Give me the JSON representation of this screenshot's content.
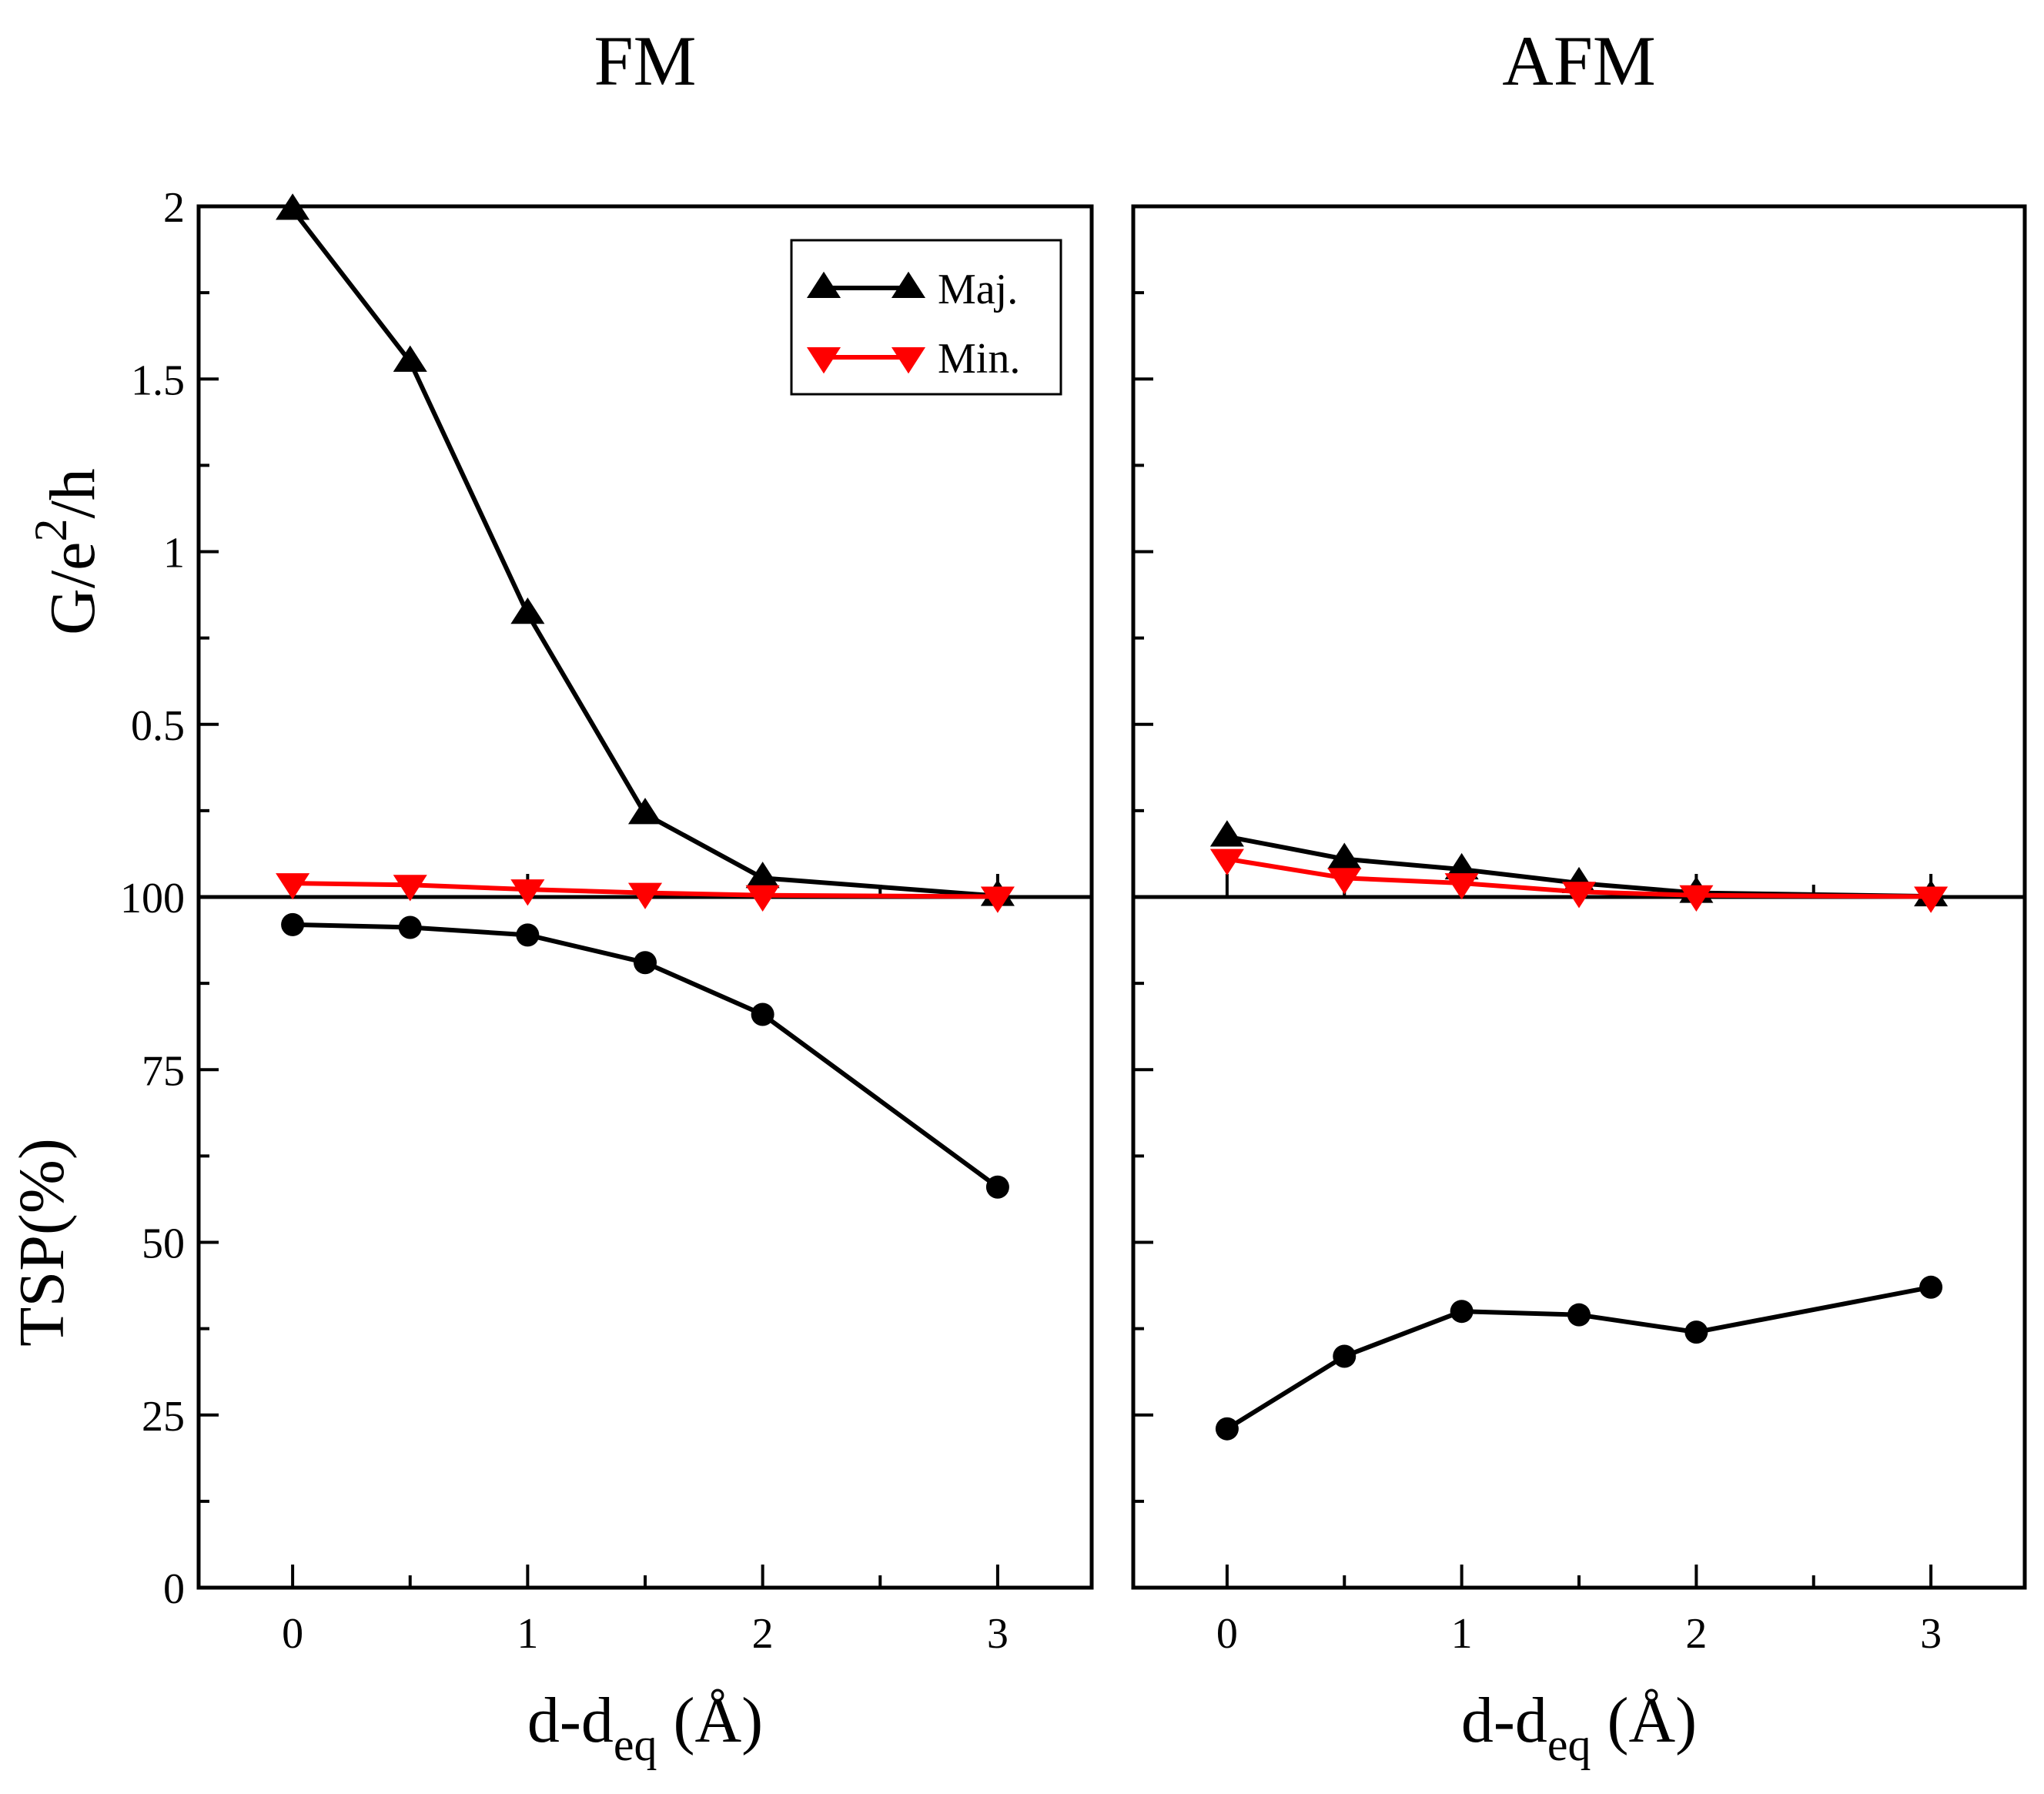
{
  "chart_data": {
    "type": "line",
    "x_ticks": [
      0,
      1,
      2,
      3
    ],
    "xlim": [
      -0.4,
      3.4
    ],
    "xlabel": {
      "main": "d-d",
      "sub": "eq",
      "unit": " (Å)"
    },
    "top_ylabel": {
      "pre": "G/e",
      "sup": "2",
      "post": "/h"
    },
    "top_ylim": [
      0,
      2
    ],
    "top_yticks": [
      {
        "v": 2,
        "label": "2"
      },
      {
        "v": 1.5,
        "label": "1.5"
      },
      {
        "v": 1,
        "label": "1"
      },
      {
        "v": 0.5,
        "label": "0.5"
      }
    ],
    "bottom_ylabel": "TSP(%)",
    "bottom_ylim": [
      0,
      100
    ],
    "bottom_yticks": [
      {
        "v": 100,
        "label": "100"
      },
      {
        "v": 75,
        "label": "75"
      },
      {
        "v": 50,
        "label": "50"
      },
      {
        "v": 25,
        "label": "25"
      },
      {
        "v": 0,
        "label": "0"
      }
    ],
    "legend": [
      {
        "name": "Maj.",
        "color": "#000000",
        "marker": "triangle-up"
      },
      {
        "name": "Min.",
        "color": "#ff0000",
        "marker": "triangle-down"
      }
    ],
    "panels": [
      {
        "title": "FM",
        "conductance": [
          {
            "name": "Maj.",
            "color": "#000000",
            "marker": "triangle-up",
            "x": [
              0,
              0.5,
              1,
              1.5,
              2,
              3
            ],
            "y": [
              1.99,
              1.55,
              0.82,
              0.24,
              0.055,
              0.003
            ]
          },
          {
            "name": "Min.",
            "color": "#ff0000",
            "marker": "triangle-down",
            "x": [
              0,
              0.5,
              1,
              1.5,
              2,
              3
            ],
            "y": [
              0.04,
              0.035,
              0.022,
              0.012,
              0.005,
              0.001
            ]
          }
        ],
        "tsp": {
          "name": "TSP",
          "color": "#000000",
          "marker": "circle",
          "x": [
            0,
            0.5,
            1,
            1.5,
            2,
            3
          ],
          "y": [
            96,
            95.6,
            94.5,
            90.5,
            83,
            58
          ]
        }
      },
      {
        "title": "AFM",
        "conductance": [
          {
            "name": "Maj.",
            "color": "#000000",
            "marker": "triangle-up",
            "x": [
              0,
              0.5,
              1,
              1.5,
              2,
              3
            ],
            "y": [
              0.175,
              0.11,
              0.08,
              0.04,
              0.012,
              0.002
            ]
          },
          {
            "name": "Min.",
            "color": "#ff0000",
            "marker": "triangle-down",
            "x": [
              0,
              0.5,
              1,
              1.5,
              2,
              3
            ],
            "y": [
              0.11,
              0.055,
              0.04,
              0.015,
              0.005,
              0.001
            ]
          }
        ],
        "tsp": {
          "name": "TSP",
          "color": "#000000",
          "marker": "circle",
          "x": [
            0,
            0.5,
            1,
            1.5,
            2,
            3
          ],
          "y": [
            23,
            33.5,
            40,
            39.5,
            37,
            43.5
          ]
        }
      }
    ]
  }
}
